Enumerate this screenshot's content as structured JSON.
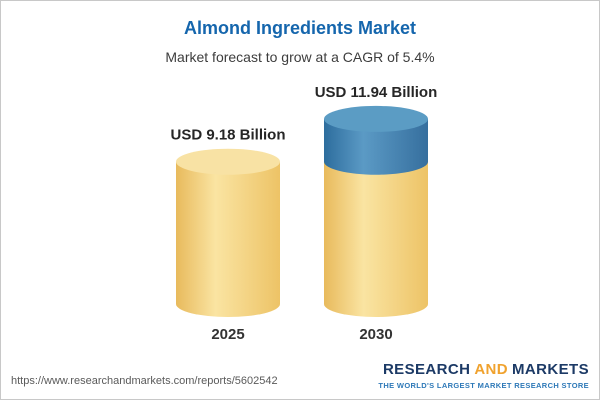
{
  "header": {
    "title": "Almond Ingredients Market",
    "subtitle": "Market forecast to grow at a CAGR of 5.4%",
    "title_color": "#1566ad",
    "subtitle_color": "#3d3d3d"
  },
  "chart_data": {
    "type": "bar",
    "variant": "3d-cylinder",
    "title": "Almond Ingredients Market",
    "subtitle": "Market forecast to grow at a CAGR of 5.4%",
    "unit": "USD Billion",
    "cagr_percent": 5.4,
    "categories": [
      "2025",
      "2030"
    ],
    "totals": [
      9.18,
      11.94
    ],
    "value_labels": [
      "USD 9.18 Billion",
      "USD 11.94 Billion"
    ],
    "series": [
      {
        "name": "base-market-size",
        "values": [
          9.18,
          9.18
        ],
        "body_gradient": [
          "#e8ba5c",
          "#fae4a2",
          "#edc366"
        ],
        "top_color": "#f8e2a4"
      },
      {
        "name": "forecast-growth",
        "values": [
          0,
          2.76
        ],
        "body_gradient": [
          "#2d6d9d",
          "#5b9ac5",
          "#366f9e"
        ],
        "top_color": "#5b9cc4"
      }
    ],
    "ylim": [
      0,
      12
    ],
    "gridlines": false,
    "legend": false
  },
  "footer": {
    "url": "https://www.researchandmarkets.com/reports/5602542",
    "logo": {
      "word1": "RESEARCH",
      "word2": "AND",
      "word3": "MARKETS",
      "tagline": "THE WORLD'S LARGEST MARKET RESEARCH STORE",
      "navy_color": "#1c3a66",
      "orange_color": "#f0a22e",
      "tagline_color": "#2e79b8"
    }
  }
}
